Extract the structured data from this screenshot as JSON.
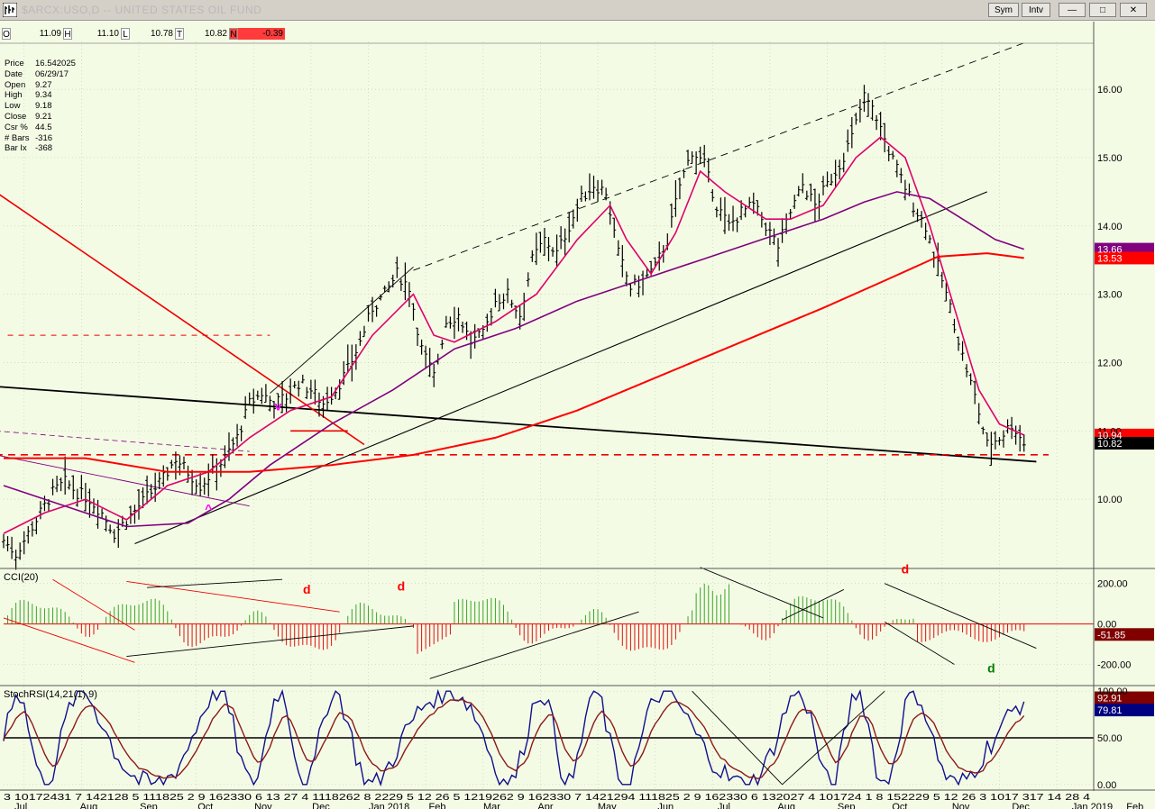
{
  "window": {
    "title": "$ARCX:USO,D -- UNITED STATES OIL FUND",
    "sym_button": "Sym",
    "intv_button": "Intv",
    "minimize": "—",
    "maximize": "□",
    "close": "✕"
  },
  "ohlc_bar": {
    "o_label": "O",
    "o_value": "11.09",
    "h_label": "H",
    "h_value": "11.10",
    "l_label": "L",
    "l_value": "10.78",
    "t_label": "T",
    "t_value": "10.82",
    "n_label": "N",
    "n_value": "-0.39"
  },
  "info_box": [
    {
      "k": "Price",
      "v": "16.542025"
    },
    {
      "k": "Date",
      "v": "06/29/17"
    },
    {
      "k": "Open",
      "v": "9.27"
    },
    {
      "k": "High",
      "v": "9.34"
    },
    {
      "k": "Low",
      "v": "9.18"
    },
    {
      "k": "Close",
      "v": "9.21"
    },
    {
      "k": "Csr %",
      "v": "44.5"
    },
    {
      "k": "# Bars",
      "v": "-316"
    },
    {
      "k": "Bar Ix",
      "v": "-368"
    }
  ],
  "price_panel": {
    "ylim": [
      9.0,
      16.7
    ],
    "ticks": [
      "16.00",
      "15.00",
      "14.00",
      "13.00",
      "12.00",
      "11.00",
      "10.00"
    ],
    "tick_values": [
      16,
      15,
      14,
      13,
      12,
      11,
      10
    ],
    "badges": [
      {
        "text": "13.66",
        "value": 13.66,
        "color": "#800080"
      },
      {
        "text": "13.53",
        "value": 13.53,
        "color": "#ff0000"
      },
      {
        "text": "10.94",
        "value": 10.94,
        "color": "#ff0000"
      },
      {
        "text": "10.82",
        "value": 10.82,
        "color": "#000000"
      }
    ],
    "annotations": [
      {
        "text": "v",
        "color": "#ff00ff",
        "date_index": 67,
        "value": 11.3
      },
      {
        "text": "^",
        "color": "#ff00ff",
        "date_index": 50,
        "value": 9.8
      }
    ]
  },
  "cci_panel": {
    "label": "CCI(20)",
    "ylim": [
      -300,
      270
    ],
    "ticks": [
      "200.00",
      "0.00",
      "-200.00"
    ],
    "tick_values": [
      200,
      0,
      -200
    ],
    "badge": {
      "text": "-51.85",
      "value": -51.85,
      "color": "#800000"
    },
    "annotations": [
      {
        "text": "d",
        "color": "#ff0000",
        "date_index": 74,
        "value": 150
      },
      {
        "text": "d",
        "color": "#ff0000",
        "date_index": 97,
        "value": 165
      },
      {
        "text": "d",
        "color": "#ff0000",
        "date_index": 220,
        "value": 250
      },
      {
        "text": "d",
        "color": "#008000",
        "date_index": 241,
        "value": -240
      }
    ]
  },
  "stoch_panel": {
    "label": "StochRSI(14,21(1),9)",
    "ylim": [
      -5,
      105
    ],
    "ticks": [
      "100.00",
      "50.00",
      "0.00"
    ],
    "tick_values": [
      100,
      50,
      0
    ],
    "badges": [
      {
        "text": "92.91",
        "value": 92.91,
        "color": "#800000"
      },
      {
        "text": "79.81",
        "value": 79.81,
        "color": "#000080"
      }
    ]
  },
  "x_axis": {
    "day_labels": "3 10172431 7 142128 5 111825 2  9  162330 6 13  27 4 1118262 8  2229 5 12  26 5 1219262 9 162330 7 1421294 111825 2 9 162330 6 132027 4 101724 1 8  152229 5 12  26 3 1017  317 14  28 4",
    "months": [
      {
        "text": "Jul",
        "pos": 0.01
      },
      {
        "text": "Aug",
        "pos": 0.07
      },
      {
        "text": "Sep",
        "pos": 0.125
      },
      {
        "text": "Oct",
        "pos": 0.178
      },
      {
        "text": "Nov",
        "pos": 0.23
      },
      {
        "text": "Dec",
        "pos": 0.283
      },
      {
        "text": "Jan 2018",
        "pos": 0.335
      },
      {
        "text": "Feb",
        "pos": 0.39
      },
      {
        "text": "Mar",
        "pos": 0.44
      },
      {
        "text": "Apr",
        "pos": 0.49
      },
      {
        "text": "May",
        "pos": 0.545
      },
      {
        "text": "Jun",
        "pos": 0.6
      },
      {
        "text": "Jul",
        "pos": 0.655
      },
      {
        "text": "Aug",
        "pos": 0.71
      },
      {
        "text": "Sep",
        "pos": 0.765
      },
      {
        "text": "Oct",
        "pos": 0.815
      },
      {
        "text": "Nov",
        "pos": 0.87
      },
      {
        "text": "Dec",
        "pos": 0.925
      },
      {
        "text": "Jan 2019",
        "pos": 0.98
      },
      {
        "text": "Feb",
        "pos": 1.03
      }
    ]
  },
  "chart_data": {
    "type": "line",
    "title": "$ARCX:USO,D -- UNITED STATES OIL FUND",
    "xlabel": "",
    "ylabel": "",
    "x_range": [
      "2017-07-03",
      "2019-02-04"
    ],
    "series": [
      {
        "key": "close",
        "kind": "bars",
        "color": "#000000",
        "points": [
          [
            0,
            9.4
          ],
          [
            3,
            9.2
          ],
          [
            6,
            9.5
          ],
          [
            9,
            9.8
          ],
          [
            12,
            10.1
          ],
          [
            15,
            10.25
          ],
          [
            18,
            10.1
          ],
          [
            21,
            10.0
          ],
          [
            24,
            9.8
          ],
          [
            27,
            9.5
          ],
          [
            30,
            9.7
          ],
          [
            33,
            9.9
          ],
          [
            36,
            10.1
          ],
          [
            39,
            10.3
          ],
          [
            42,
            10.6
          ],
          [
            45,
            10.4
          ],
          [
            48,
            10.2
          ],
          [
            51,
            10.4
          ],
          [
            54,
            10.6
          ],
          [
            57,
            10.9
          ],
          [
            60,
            11.4
          ],
          [
            63,
            11.55
          ],
          [
            66,
            11.4
          ],
          [
            69,
            11.5
          ],
          [
            72,
            11.7
          ],
          [
            75,
            11.6
          ],
          [
            78,
            11.4
          ],
          [
            81,
            11.6
          ],
          [
            84,
            11.9
          ],
          [
            87,
            12.3
          ],
          [
            90,
            12.8
          ],
          [
            93,
            13.0
          ],
          [
            96,
            13.3
          ],
          [
            99,
            13.1
          ],
          [
            102,
            12.2
          ],
          [
            105,
            11.8
          ],
          [
            108,
            12.6
          ],
          [
            111,
            12.7
          ],
          [
            114,
            12.3
          ],
          [
            117,
            12.4
          ],
          [
            120,
            12.9
          ],
          [
            123,
            13.0
          ],
          [
            126,
            12.7
          ],
          [
            129,
            13.5
          ],
          [
            132,
            13.8
          ],
          [
            135,
            13.6
          ],
          [
            138,
            14.0
          ],
          [
            141,
            14.4
          ],
          [
            144,
            14.6
          ],
          [
            147,
            14.5
          ],
          [
            150,
            13.6
          ],
          [
            153,
            13.1
          ],
          [
            156,
            13.2
          ],
          [
            159,
            13.4
          ],
          [
            162,
            13.8
          ],
          [
            165,
            14.6
          ],
          [
            168,
            15.1
          ],
          [
            171,
            14.9
          ],
          [
            174,
            14.3
          ],
          [
            177,
            14.0
          ],
          [
            180,
            14.2
          ],
          [
            183,
            14.3
          ],
          [
            186,
            14.0
          ],
          [
            189,
            13.7
          ],
          [
            192,
            14.2
          ],
          [
            195,
            14.6
          ],
          [
            198,
            14.3
          ],
          [
            201,
            14.6
          ],
          [
            204,
            14.9
          ],
          [
            207,
            15.3
          ],
          [
            210,
            15.9
          ],
          [
            213,
            15.6
          ],
          [
            216,
            15.1
          ],
          [
            219,
            14.7
          ],
          [
            222,
            14.3
          ],
          [
            225,
            14.0
          ],
          [
            228,
            13.4
          ],
          [
            231,
            12.8
          ],
          [
            234,
            12.1
          ],
          [
            237,
            11.5
          ],
          [
            240,
            10.8
          ],
          [
            243,
            10.9
          ],
          [
            246,
            11.1
          ],
          [
            249,
            10.82
          ]
        ]
      },
      {
        "key": "ema_fast",
        "kind": "line",
        "color": "#e0006c",
        "points": [
          [
            0,
            9.5
          ],
          [
            10,
            9.8
          ],
          [
            20,
            10.0
          ],
          [
            30,
            9.7
          ],
          [
            40,
            10.2
          ],
          [
            50,
            10.4
          ],
          [
            60,
            10.9
          ],
          [
            70,
            11.3
          ],
          [
            80,
            11.5
          ],
          [
            90,
            12.4
          ],
          [
            100,
            13.0
          ],
          [
            105,
            12.4
          ],
          [
            110,
            12.3
          ],
          [
            120,
            12.6
          ],
          [
            130,
            13.0
          ],
          [
            140,
            13.8
          ],
          [
            148,
            14.3
          ],
          [
            152,
            13.8
          ],
          [
            158,
            13.3
          ],
          [
            164,
            13.9
          ],
          [
            170,
            14.8
          ],
          [
            176,
            14.5
          ],
          [
            186,
            14.1
          ],
          [
            192,
            14.1
          ],
          [
            200,
            14.3
          ],
          [
            208,
            15.0
          ],
          [
            214,
            15.3
          ],
          [
            220,
            15.0
          ],
          [
            226,
            14.0
          ],
          [
            232,
            12.8
          ],
          [
            238,
            11.6
          ],
          [
            243,
            11.1
          ],
          [
            249,
            10.94
          ]
        ]
      },
      {
        "key": "sma_mid",
        "kind": "line",
        "color": "#800080",
        "points": [
          [
            0,
            10.2
          ],
          [
            15,
            9.9
          ],
          [
            30,
            9.6
          ],
          [
            45,
            9.65
          ],
          [
            55,
            10.0
          ],
          [
            65,
            10.5
          ],
          [
            80,
            11.1
          ],
          [
            95,
            11.6
          ],
          [
            110,
            12.2
          ],
          [
            125,
            12.5
          ],
          [
            140,
            12.9
          ],
          [
            155,
            13.2
          ],
          [
            170,
            13.5
          ],
          [
            185,
            13.8
          ],
          [
            200,
            14.1
          ],
          [
            210,
            14.35
          ],
          [
            218,
            14.5
          ],
          [
            226,
            14.4
          ],
          [
            234,
            14.1
          ],
          [
            242,
            13.8
          ],
          [
            249,
            13.66
          ]
        ]
      },
      {
        "key": "sma_slow",
        "kind": "line",
        "color": "#ff0000",
        "points": [
          [
            0,
            10.6
          ],
          [
            20,
            10.6
          ],
          [
            40,
            10.4
          ],
          [
            60,
            10.4
          ],
          [
            80,
            10.5
          ],
          [
            100,
            10.65
          ],
          [
            120,
            10.9
          ],
          [
            140,
            11.3
          ],
          [
            160,
            11.8
          ],
          [
            180,
            12.3
          ],
          [
            200,
            12.8
          ],
          [
            215,
            13.2
          ],
          [
            228,
            13.55
          ],
          [
            240,
            13.6
          ],
          [
            249,
            13.53
          ]
        ]
      }
    ]
  }
}
